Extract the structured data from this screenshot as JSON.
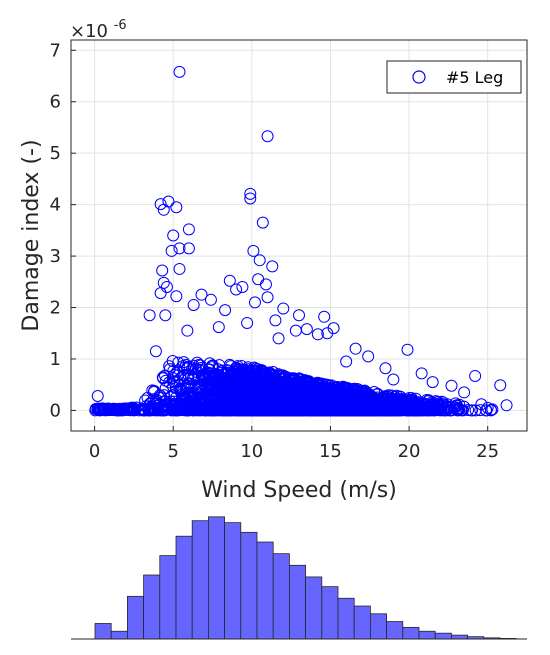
{
  "chart_data": [
    {
      "type": "scatter",
      "xlabel": "Wind Speed (m/s)",
      "ylabel": "Damage index (-)",
      "y_exponent_label": "×10",
      "y_exponent_power": "-6",
      "xlim": [
        -1.5,
        27.5
      ],
      "ylim": [
        -0.4,
        7.2
      ],
      "xticks": [
        0,
        5,
        10,
        15,
        20,
        25
      ],
      "yticks": [
        0,
        1,
        2,
        3,
        4,
        5,
        6,
        7
      ],
      "grid": true,
      "legend_position": "top-right",
      "series": [
        {
          "name": "#5 Leg",
          "marker": "open-circle",
          "color": "#0000ff",
          "outliers": [
            [
              0.2,
              0.28
            ],
            [
              5.4,
              6.58
            ],
            [
              11.0,
              5.33
            ],
            [
              9.9,
              4.21
            ],
            [
              9.9,
              4.12
            ],
            [
              4.7,
              4.06
            ],
            [
              4.2,
              4.01
            ],
            [
              5.2,
              3.95
            ],
            [
              4.4,
              3.9
            ],
            [
              10.7,
              3.65
            ],
            [
              6.0,
              3.52
            ],
            [
              5.0,
              3.4
            ],
            [
              5.4,
              3.15
            ],
            [
              10.1,
              3.1
            ],
            [
              4.9,
              3.1
            ],
            [
              6.0,
              3.15
            ],
            [
              10.5,
              2.92
            ],
            [
              11.3,
              2.8
            ],
            [
              5.4,
              2.75
            ],
            [
              4.3,
              2.72
            ],
            [
              8.6,
              2.52
            ],
            [
              10.4,
              2.55
            ],
            [
              10.9,
              2.45
            ],
            [
              4.6,
              2.4
            ],
            [
              4.4,
              2.48
            ],
            [
              9.4,
              2.4
            ],
            [
              11.0,
              2.2
            ],
            [
              4.2,
              2.28
            ],
            [
              5.2,
              2.22
            ],
            [
              6.3,
              2.05
            ],
            [
              6.8,
              2.25
            ],
            [
              9.0,
              2.35
            ],
            [
              7.4,
              2.15
            ],
            [
              10.2,
              2.1
            ],
            [
              12.0,
              1.98
            ],
            [
              4.5,
              1.85
            ],
            [
              3.5,
              1.85
            ],
            [
              8.3,
              1.95
            ],
            [
              13.0,
              1.85
            ],
            [
              14.6,
              1.82
            ],
            [
              12.8,
              1.55
            ],
            [
              13.5,
              1.58
            ],
            [
              11.5,
              1.75
            ],
            [
              14.8,
              1.5
            ],
            [
              15.2,
              1.6
            ],
            [
              14.2,
              1.48
            ],
            [
              7.9,
              1.62
            ],
            [
              3.9,
              1.15
            ],
            [
              16.6,
              1.2
            ],
            [
              19.9,
              1.18
            ],
            [
              17.4,
              1.05
            ],
            [
              24.2,
              0.67
            ],
            [
              25.8,
              0.49
            ],
            [
              26.2,
              0.1
            ],
            [
              5.9,
              1.55
            ],
            [
              9.7,
              1.7
            ],
            [
              11.7,
              1.4
            ],
            [
              16.0,
              0.95
            ],
            [
              18.5,
              0.82
            ],
            [
              21.5,
              0.55
            ],
            [
              22.7,
              0.48
            ],
            [
              20.8,
              0.72
            ],
            [
              19.0,
              0.6
            ],
            [
              23.5,
              0.35
            ],
            [
              25.0,
              0.05
            ],
            [
              24.6,
              0.12
            ],
            [
              25.3,
              0.02
            ]
          ],
          "envelope": [
            [
              0,
              0.03
            ],
            [
              2,
              0.05
            ],
            [
              3,
              0.15
            ],
            [
              4,
              0.6
            ],
            [
              5,
              1.0
            ],
            [
              6,
              0.95
            ],
            [
              8,
              0.9
            ],
            [
              10,
              0.85
            ],
            [
              12,
              0.7
            ],
            [
              14,
              0.55
            ],
            [
              16,
              0.45
            ],
            [
              18,
              0.35
            ],
            [
              20,
              0.25
            ],
            [
              22,
              0.18
            ],
            [
              24,
              0.1
            ],
            [
              25.5,
              0.05
            ]
          ]
        }
      ]
    },
    {
      "type": "bar",
      "title": "",
      "xlabel": "",
      "ylabel": "",
      "values": [
        8,
        4,
        22,
        33,
        43,
        53,
        61,
        63,
        60,
        55,
        50,
        44,
        38,
        32,
        27,
        21,
        17,
        13,
        9,
        6,
        4,
        3,
        2,
        1.2,
        0.6,
        0.3
      ],
      "ylim": [
        0,
        66
      ],
      "color": "#6666ff"
    }
  ]
}
